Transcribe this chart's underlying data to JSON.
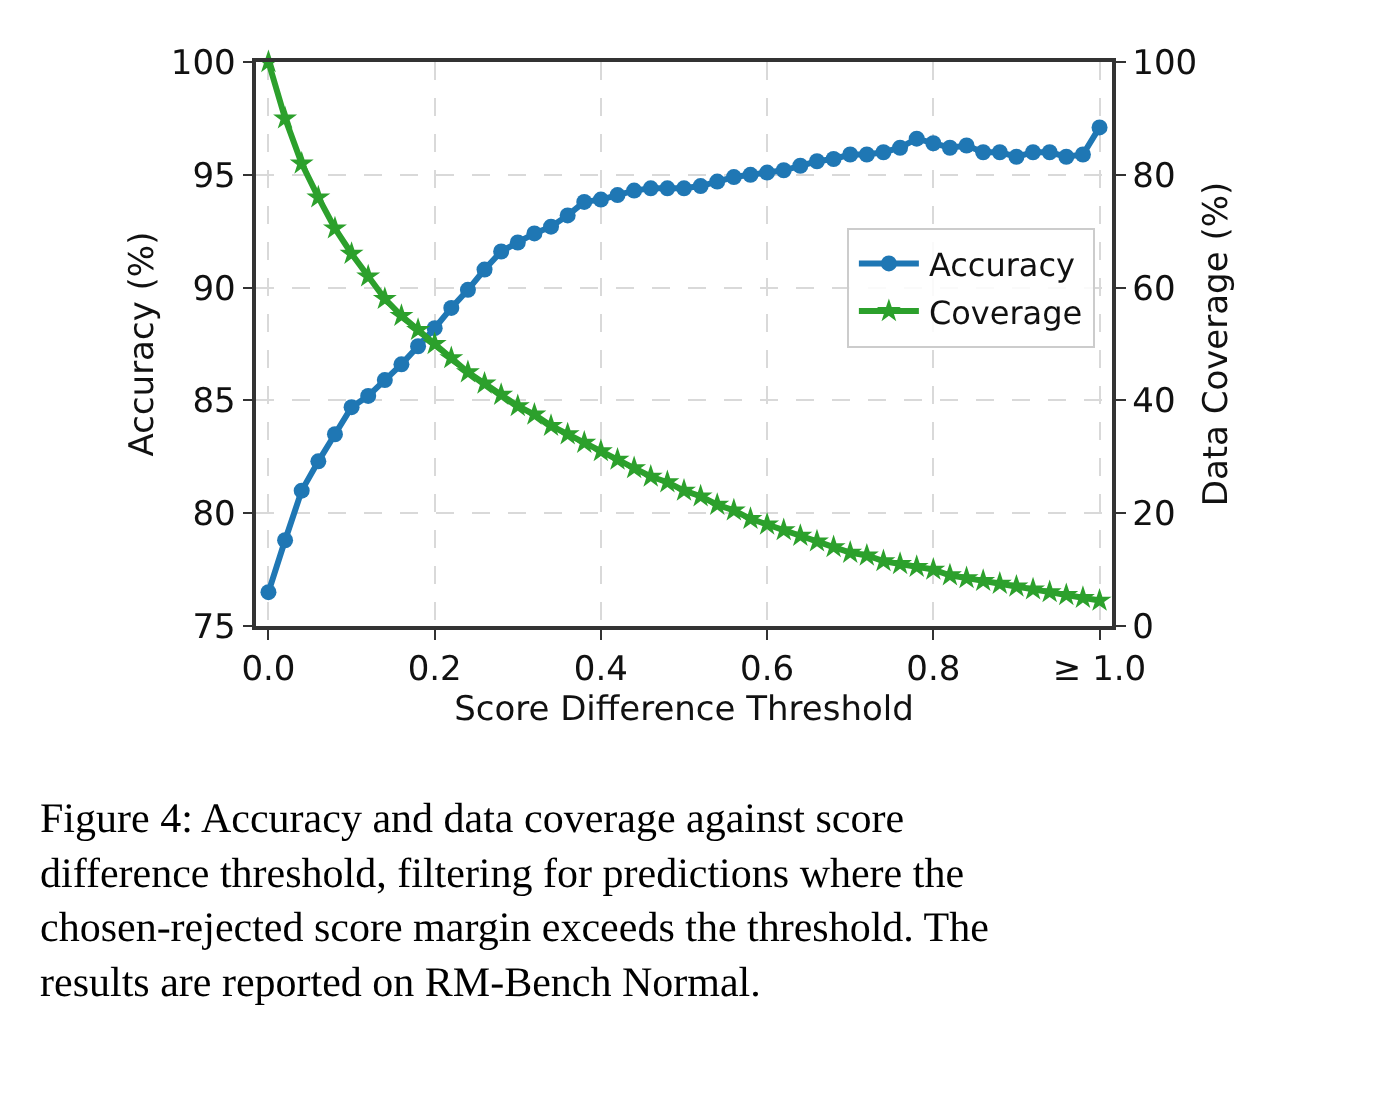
{
  "chart_data": {
    "type": "line",
    "xlabel": "Score Difference Threshold",
    "ylabel": "Accuracy (%)",
    "y2label": "Data Coverage (%)",
    "x": [
      0,
      0.02,
      0.04,
      0.06,
      0.08,
      0.1,
      0.12,
      0.14,
      0.16,
      0.18,
      0.2,
      0.22,
      0.24,
      0.26,
      0.28,
      0.3,
      0.32,
      0.34,
      0.36,
      0.38,
      0.4,
      0.42,
      0.44,
      0.46,
      0.48,
      0.5,
      0.52,
      0.54,
      0.56,
      0.58,
      0.6,
      0.62,
      0.64,
      0.66,
      0.68,
      0.7,
      0.72,
      0.74,
      0.76,
      0.78,
      0.8,
      0.82,
      0.84,
      0.86,
      0.88,
      0.9,
      0.92,
      0.94,
      0.96,
      0.98,
      1.0
    ],
    "series": [
      {
        "name": "Accuracy",
        "color": "#1f77b4",
        "marker": "circle",
        "values": [
          76.5,
          78.8,
          81.0,
          82.3,
          83.5,
          84.7,
          85.2,
          85.9,
          86.6,
          87.4,
          88.2,
          89.1,
          89.9,
          90.8,
          91.6,
          92.0,
          92.4,
          92.7,
          93.2,
          93.8,
          93.9,
          94.1,
          94.3,
          94.4,
          94.4,
          94.4,
          94.5,
          94.7,
          94.9,
          95.0,
          95.1,
          95.2,
          95.4,
          95.6,
          95.7,
          95.9,
          95.9,
          96.0,
          96.2,
          96.6,
          96.4,
          96.2,
          96.3,
          96.0,
          96.0,
          95.8,
          96.0,
          96.0,
          95.8,
          95.9,
          97.1
        ]
      },
      {
        "name": "Coverage",
        "color": "#2ca02c",
        "marker": "star",
        "axis": "y2",
        "values": [
          100,
          90,
          82,
          76,
          70.5,
          66,
          62,
          58,
          55,
          52.5,
          50,
          47.5,
          45,
          43,
          41,
          39,
          37.5,
          35.5,
          34,
          32.5,
          31,
          29.5,
          28,
          26.5,
          25.5,
          24,
          23,
          21.5,
          20.5,
          19,
          18,
          17,
          16,
          15,
          14,
          13,
          12.5,
          11.5,
          11,
          10.5,
          10,
          9,
          8.5,
          8,
          7.5,
          7,
          6.5,
          6,
          5.5,
          5,
          4.5
        ]
      }
    ],
    "xlim": [
      -0.015,
      1.015
    ],
    "xticks": [
      {
        "value": 0,
        "label": "0.0"
      },
      {
        "value": 0.2,
        "label": "0.2"
      },
      {
        "value": 0.4,
        "label": "0.4"
      },
      {
        "value": 0.6,
        "label": "0.6"
      },
      {
        "value": 0.8,
        "label": "0.8"
      },
      {
        "value": 1.0,
        "label": "≥ 1.0"
      }
    ],
    "ylim": [
      75,
      100
    ],
    "yticks": [
      75,
      80,
      85,
      90,
      95,
      100
    ],
    "y2lim": [
      0,
      100
    ],
    "y2ticks": [
      0,
      20,
      40,
      60,
      80,
      100
    ],
    "grid": true,
    "legend": "right",
    "line_style": "solid",
    "annotations": [
      "Figure 4: Accuracy and data coverage against score difference threshold, filtering for predictions where the chosen-rejected score margin exceeds the threshold. The results are reported on RM-Bench Normal."
    ]
  }
}
